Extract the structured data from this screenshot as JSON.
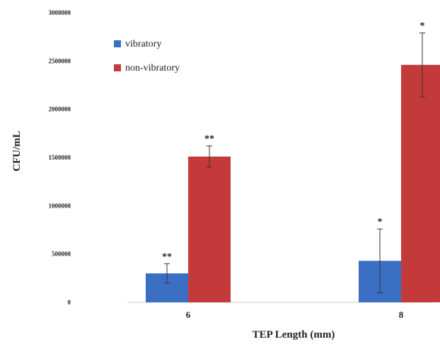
{
  "chart_data": {
    "type": "bar",
    "title": "",
    "xlabel": "TEP Length (mm)",
    "ylabel": "CFU/mL",
    "categories": [
      "6",
      "8"
    ],
    "ylim": [
      0,
      3000000
    ],
    "yticks": [
      0,
      500000,
      1000000,
      1500000,
      2000000,
      2500000,
      3000000
    ],
    "ytick_labels": [
      "0",
      "500000",
      "1000000",
      "1500000",
      "2000000",
      "2500000",
      "3000000"
    ],
    "grid": false,
    "legend_position": "top-left",
    "series": [
      {
        "name": "vibratory",
        "color": "#3a6fc4",
        "values": [
          300000,
          430000
        ],
        "errors": [
          100000,
          330000
        ],
        "significance": [
          "**",
          "*"
        ]
      },
      {
        "name": "non-vibratory",
        "color": "#c43a3a",
        "values": [
          1510000,
          2460000
        ],
        "errors": [
          110000,
          330000
        ],
        "significance": [
          "**",
          "*"
        ]
      }
    ]
  }
}
